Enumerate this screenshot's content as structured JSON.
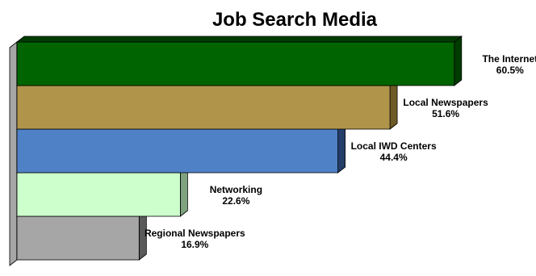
{
  "chart_data": {
    "type": "bar",
    "orientation": "horizontal",
    "style": "3d",
    "title": "Job Search Media",
    "categories": [
      "The Internet",
      "Local Newspapers",
      "Local IWD Centers",
      "Networking",
      "Regional Newspapers"
    ],
    "values": [
      60.5,
      51.6,
      44.4,
      22.6,
      16.9
    ],
    "value_labels": [
      "60.5%",
      "51.6%",
      "44.4%",
      "22.6%",
      "16.9%"
    ],
    "unit": "%",
    "xlim": [
      0,
      67
    ],
    "grid": false,
    "legend": "none",
    "colors": [
      "#006400",
      "#b0944a",
      "#4f81c7",
      "#ccffcc",
      "#a6a6a6"
    ],
    "side_colors": [
      "#003c00",
      "#6e5a26",
      "#243e6a",
      "#7fa27f",
      "#5a5a5a"
    ]
  }
}
